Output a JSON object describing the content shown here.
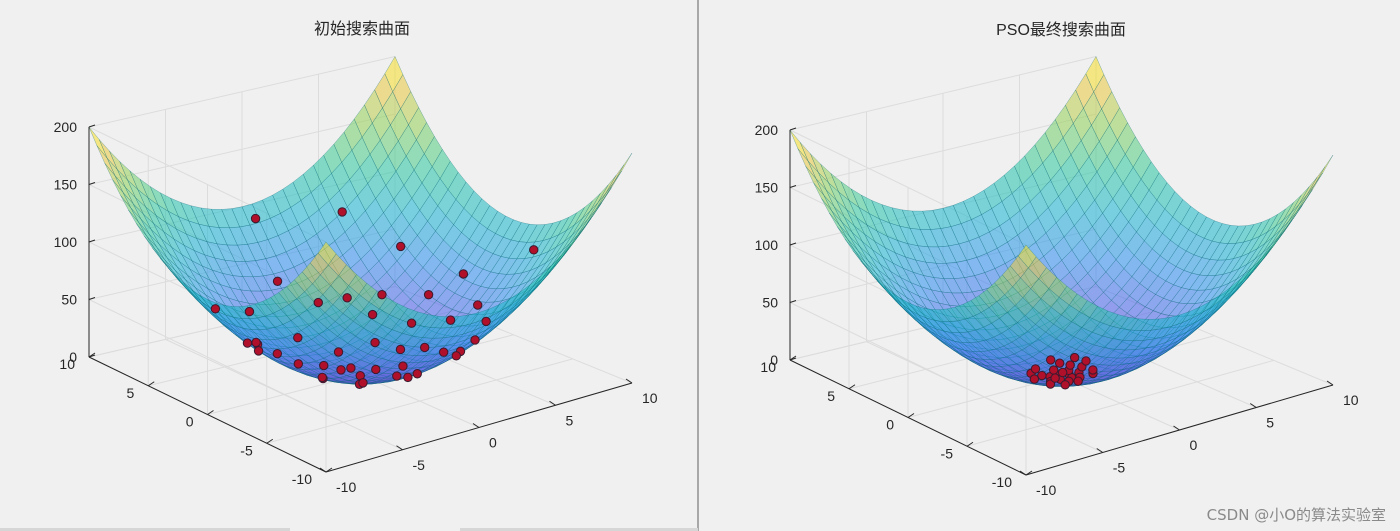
{
  "watermark": "CSDN @小O的算法实验室",
  "colors": {
    "background": "#f0f0f0",
    "axes_line": "#262626",
    "grid": "#dcdcdc",
    "mesh_line": "#0b6a78",
    "particle_fill": "#b0102a",
    "particle_edge": "#3a1a30"
  },
  "chart_data": [
    {
      "type": "surface3d",
      "title": "初始搜索曲面",
      "function": "z = x^2 + y^2",
      "xlim": [
        -10,
        10
      ],
      "ylim": [
        -10,
        10
      ],
      "zlim": [
        0,
        200
      ],
      "xticks": [
        "-10",
        "-5",
        "0",
        "5",
        "10"
      ],
      "yticks": [
        "-10",
        "-5",
        "0",
        "5",
        "10"
      ],
      "zticks": [
        "0",
        "50",
        "100",
        "150",
        "200"
      ],
      "colormap": "parula",
      "grid": true,
      "particles": [
        {
          "x": 9.0,
          "y": -3.0
        },
        {
          "x": 0.5,
          "y": 9.5
        },
        {
          "x": 5.0,
          "y": 8.0
        },
        {
          "x": -2.0,
          "y": -8.0
        },
        {
          "x": 6.0,
          "y": 2.0
        },
        {
          "x": 0.0,
          "y": 7.0
        },
        {
          "x": -6.0,
          "y": 4.5
        },
        {
          "x": -4.5,
          "y": -5.0
        },
        {
          "x": 1.5,
          "y": -6.5
        },
        {
          "x": -7.0,
          "y": 0.5
        },
        {
          "x": -7.5,
          "y": -1.0
        },
        {
          "x": 4.0,
          "y": -4.5
        },
        {
          "x": -5.5,
          "y": -4.0
        },
        {
          "x": 3.0,
          "y": 5.0
        },
        {
          "x": 2.0,
          "y": -5.5
        },
        {
          "x": -3.5,
          "y": 2.5
        },
        {
          "x": 5.5,
          "y": -0.5
        },
        {
          "x": -1.0,
          "y": 4.0
        },
        {
          "x": 2.5,
          "y": 2.0
        },
        {
          "x": 6.5,
          "y": -1.5
        },
        {
          "x": 3.5,
          "y": -2.5
        },
        {
          "x": -2.0,
          "y": -2.5
        },
        {
          "x": -3.0,
          "y": 5.5
        },
        {
          "x": 1.0,
          "y": -3.5
        },
        {
          "x": 4.5,
          "y": 4.0
        },
        {
          "x": -4.0,
          "y": -2.0
        },
        {
          "x": 0.5,
          "y": 2.5
        },
        {
          "x": -1.5,
          "y": -5.0
        },
        {
          "x": 3.0,
          "y": 0.5
        },
        {
          "x": -5.5,
          "y": 1.5
        },
        {
          "x": 1.5,
          "y": 5.5
        },
        {
          "x": -2.5,
          "y": 0.0
        },
        {
          "x": 4.5,
          "y": 1.5
        },
        {
          "x": 0.0,
          "y": -4.0
        },
        {
          "x": -3.5,
          "y": -4.5
        },
        {
          "x": 2.0,
          "y": -1.0
        },
        {
          "x": -0.5,
          "y": 1.0
        },
        {
          "x": 5.5,
          "y": -3.5
        },
        {
          "x": -6.0,
          "y": -2.5
        },
        {
          "x": 6.5,
          "y": 5.0
        },
        {
          "x": -1.0,
          "y": -1.5
        },
        {
          "x": 3.5,
          "y": 3.5
        },
        {
          "x": 7.5,
          "y": 1.0
        },
        {
          "x": -4.5,
          "y": 3.0
        },
        {
          "x": 1.0,
          "y": 0.0
        }
      ]
    },
    {
      "type": "surface3d",
      "title": "PSO最终搜索曲面",
      "function": "z = x^2 + y^2",
      "xlim": [
        -10,
        10
      ],
      "ylim": [
        -10,
        10
      ],
      "zlim": [
        0,
        200
      ],
      "xticks": [
        "-10",
        "-5",
        "0",
        "5",
        "10"
      ],
      "yticks": [
        "-10",
        "-5",
        "0",
        "5",
        "10"
      ],
      "zticks": [
        "0",
        "50",
        "100",
        "150",
        "200"
      ],
      "colormap": "parula",
      "grid": true,
      "particles": [
        {
          "x": 0.5,
          "y": 0.0
        },
        {
          "x": 0.0,
          "y": 0.5
        },
        {
          "x": -0.5,
          "y": 0.3
        },
        {
          "x": 0.3,
          "y": -0.5
        },
        {
          "x": -0.3,
          "y": -0.3
        },
        {
          "x": 0.8,
          "y": 0.4
        },
        {
          "x": -0.8,
          "y": 0.6
        },
        {
          "x": 0.2,
          "y": 0.9
        },
        {
          "x": 1.0,
          "y": -0.2
        },
        {
          "x": -0.2,
          "y": -0.9
        },
        {
          "x": 0.6,
          "y": -0.8
        },
        {
          "x": -1.0,
          "y": -0.4
        },
        {
          "x": 1.2,
          "y": 0.8
        },
        {
          "x": -1.2,
          "y": 1.0
        },
        {
          "x": 0.9,
          "y": 1.3
        },
        {
          "x": -0.6,
          "y": 1.4
        },
        {
          "x": 1.5,
          "y": 0.2
        },
        {
          "x": 0.1,
          "y": -1.3
        },
        {
          "x": -1.4,
          "y": -0.9
        },
        {
          "x": 1.3,
          "y": -1.0
        },
        {
          "x": -0.4,
          "y": 0.0
        },
        {
          "x": 0.4,
          "y": 0.4
        },
        {
          "x": 1.8,
          "y": 1.2
        },
        {
          "x": -1.6,
          "y": 0.2
        },
        {
          "x": 2.0,
          "y": 0.5
        },
        {
          "x": 0.7,
          "y": 1.8
        },
        {
          "x": -0.9,
          "y": -1.5
        },
        {
          "x": 1.6,
          "y": -0.6
        }
      ]
    }
  ]
}
